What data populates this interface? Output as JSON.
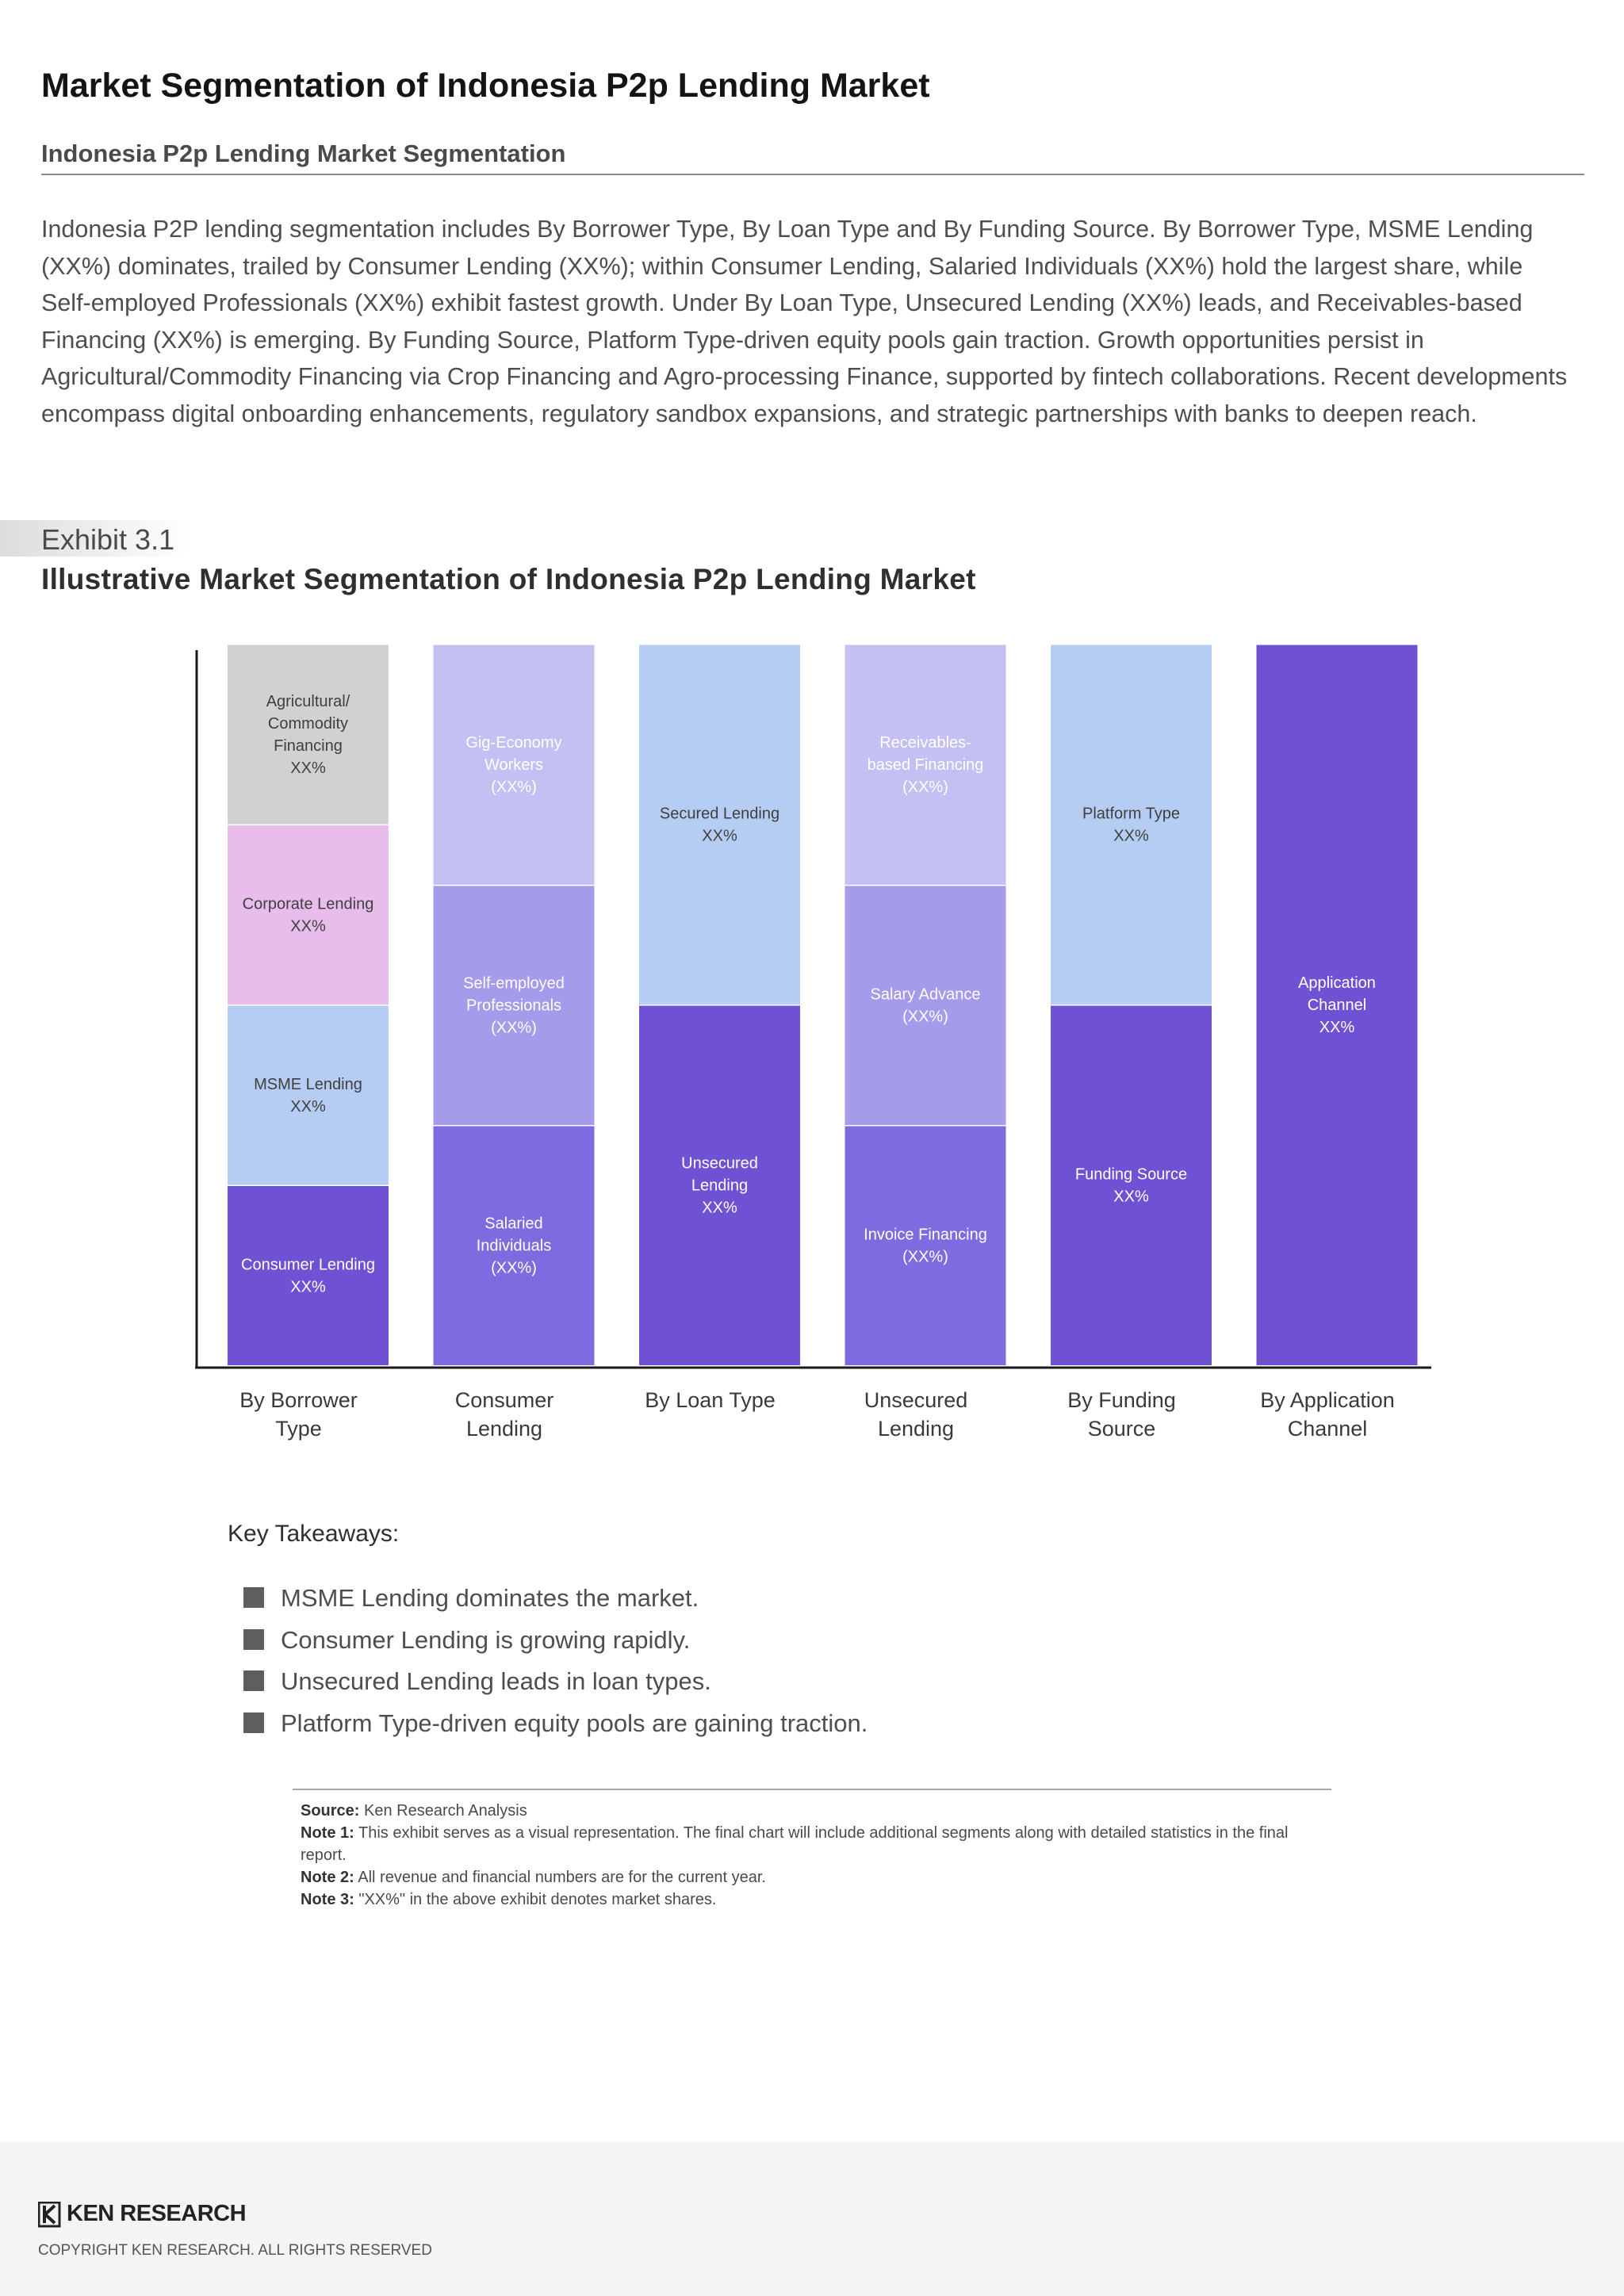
{
  "report": {
    "title": "Market Segmentation of Indonesia P2p Lending Market",
    "subtitle": "Indonesia P2p Lending Market Segmentation",
    "intro": "Indonesia P2P lending segmentation includes By Borrower Type, By Loan Type and By Funding Source. By Borrower Type, MSME Lending (XX%) dominates, trailed by Consumer Lending (XX%); within Consumer Lending, Salaried Individuals (XX%) hold the largest share, while Self-employed Professionals (XX%) exhibit fastest growth. Under By Loan Type, Unsecured Lending (XX%) leads, and Receivables-based Financing (XX%) is emerging. By Funding Source, Platform Type-driven equity pools gain traction. Growth opportunities persist in Agricultural/Commodity Financing via Crop Financing and Agro-processing Finance, supported by fintech collaborations. Recent developments encompass digital onboarding enhancements, regulatory sandbox expansions, and strategic partnerships with banks to deepen reach."
  },
  "exhibit": {
    "label": "Exhibit 3.1",
    "title": "Illustrative Market Segmentation of Indonesia P2p Lending Market"
  },
  "chart_data": {
    "type": "bar",
    "stacked": true,
    "title": "Illustrative Market Segmentation of Indonesia P2p Lending Market",
    "xlabel": "",
    "ylabel": "",
    "ylim": [
      0,
      100
    ],
    "grid": false,
    "categories": [
      "By Borrower Type",
      "Consumer Lending",
      "By Loan Type",
      "Unsecured Lending",
      "By Funding Source",
      "By Application Channel"
    ],
    "columns": [
      {
        "category": "By Borrower Type",
        "segments": [
          {
            "label": "Consumer Lending\nXX%",
            "value": 25,
            "color": "#6f52d4"
          },
          {
            "label": "MSME Lending\nXX%",
            "value": 25,
            "color": "#b5cdf2"
          },
          {
            "label": "Corporate Lending\nXX%",
            "value": 25,
            "color": "#e8bdec"
          },
          {
            "label": "Agricultural/\nCommodity\nFinancing\nXX%",
            "value": 25,
            "color": "#d1d1d1"
          }
        ]
      },
      {
        "category": "Consumer Lending",
        "segments": [
          {
            "label": "Salaried\nIndividuals\n(XX%)",
            "value": 33.3,
            "color": "#7f6be0"
          },
          {
            "label": "Self-employed\nProfessionals\n(XX%)",
            "value": 33.3,
            "color": "#a49bea"
          },
          {
            "label": "Gig-Economy\nWorkers\n(XX%)",
            "value": 33.4,
            "color": "#c4c0f3"
          }
        ]
      },
      {
        "category": "By Loan Type",
        "segments": [
          {
            "label": "Unsecured\nLending\nXX%",
            "value": 50,
            "color": "#6f52d4"
          },
          {
            "label": "Secured Lending\nXX%",
            "value": 50,
            "color": "#b5cdf2"
          }
        ]
      },
      {
        "category": "Unsecured Lending",
        "segments": [
          {
            "label": "Invoice Financing\n(XX%)",
            "value": 33.3,
            "color": "#7f6be0"
          },
          {
            "label": "Salary Advance\n(XX%)",
            "value": 33.3,
            "color": "#a49bea"
          },
          {
            "label": "Receivables-\nbased Financing\n(XX%)",
            "value": 33.4,
            "color": "#c4c0f3"
          }
        ]
      },
      {
        "category": "By Funding Source",
        "segments": [
          {
            "label": "Funding Source\nXX%",
            "value": 50,
            "color": "#6f52d4"
          },
          {
            "label": "Platform Type\nXX%",
            "value": 50,
            "color": "#b5cdf2"
          }
        ]
      },
      {
        "category": "By Application Channel",
        "segments": [
          {
            "label": "Application\nChannel\nXX%",
            "value": 100,
            "color": "#6f52d4"
          }
        ]
      }
    ],
    "category_labels": [
      "By Borrower\nType",
      "Consumer\nLending",
      "By Loan Type",
      "Unsecured\nLending",
      "By Funding\nSource",
      "By Application\nChannel"
    ]
  },
  "takeaways": {
    "heading": "Key Takeaways:",
    "items": [
      "MSME Lending dominates the market.",
      "Consumer Lending is growing rapidly.",
      "Unsecured Lending leads in loan types.",
      "Platform Type-driven equity pools are gaining traction."
    ]
  },
  "notes": {
    "source_label": "Source:",
    "source_text": "Ken Research Analysis",
    "note1_label": "Note 1:",
    "note1_text": "This exhibit serves as a visual representation. The final chart will include additional segments along with detailed statistics in the final report.",
    "note2_label": "Note 2:",
    "note2_text": "All revenue and financial numbers are for the current year.",
    "note3_label": "Note 3:",
    "note3_text": "\"XX%\" in the above exhibit denotes market shares."
  },
  "footer": {
    "brand": "KEN RESEARCH",
    "copyright": "COPYRIGHT KEN RESEARCH. ALL RIGHTS RESERVED"
  },
  "colors": {
    "dark_purple": "#6f52d4",
    "medium_purple": "#7f6be0",
    "lavender": "#a49bea",
    "light_lavender": "#c4c0f3",
    "light_blue": "#b5cdf2",
    "pink": "#e8bdec",
    "gray": "#d1d1d1"
  }
}
